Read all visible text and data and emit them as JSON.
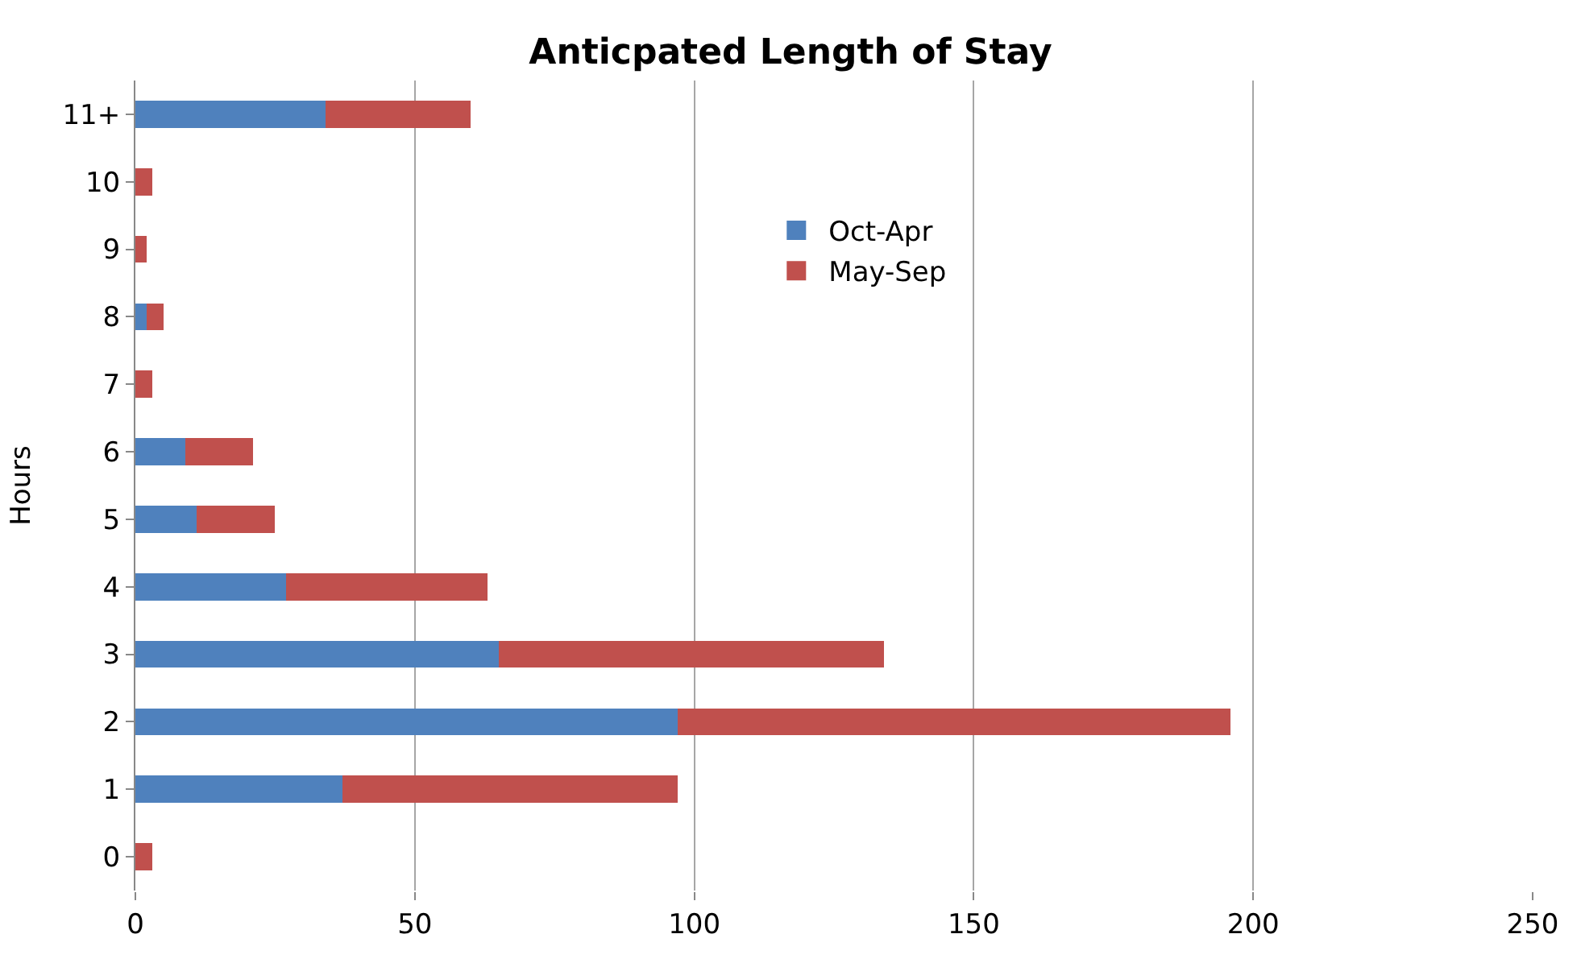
{
  "chart_data": {
    "type": "bar",
    "title": "Anticpated Length of Stay",
    "ylabel": "Hours",
    "orientation": "horizontal",
    "stacked": true,
    "categories": [
      "11+",
      "10",
      "9",
      "8",
      "7",
      "6",
      "5",
      "4",
      "3",
      "2",
      "1",
      "0"
    ],
    "series": [
      {
        "name": "Oct-Apr",
        "color": "#4f81bd",
        "values": [
          34,
          0,
          0,
          2,
          0,
          9,
          11,
          27,
          65,
          97,
          37,
          0
        ]
      },
      {
        "name": "May-Sep",
        "color": "#c0504d",
        "values": [
          26,
          3,
          2,
          3,
          3,
          12,
          14,
          36,
          69,
          99,
          60,
          3
        ]
      }
    ],
    "xlim": [
      0,
      250
    ],
    "xticks": [
      0,
      50,
      100,
      150,
      200,
      250
    ],
    "grid": "x",
    "legend": "top"
  }
}
